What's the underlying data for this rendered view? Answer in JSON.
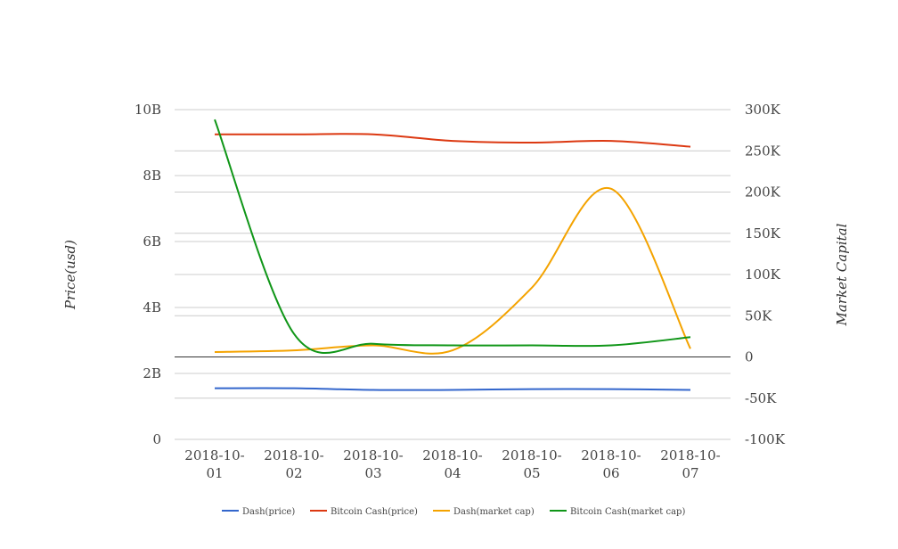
{
  "chart_data": {
    "type": "line",
    "categories": [
      "2018-10-01",
      "2018-10-02",
      "2018-10-03",
      "2018-10-04",
      "2018-10-05",
      "2018-10-06",
      "2018-10-07"
    ],
    "category_lines": [
      [
        "2018-10-",
        "01"
      ],
      [
        "2018-10-",
        "02"
      ],
      [
        "2018-10-",
        "03"
      ],
      [
        "2018-10-",
        "04"
      ],
      [
        "2018-10-",
        "05"
      ],
      [
        "2018-10-",
        "06"
      ],
      [
        "2018-10-",
        "07"
      ]
    ],
    "y_left": {
      "label": "Price(usd)",
      "range": [
        0,
        10000000000
      ],
      "ticks": [
        0,
        2000000000,
        4000000000,
        6000000000,
        8000000000,
        10000000000
      ],
      "tick_labels": [
        "0",
        "2B",
        "4B",
        "6B",
        "8B",
        "10B"
      ]
    },
    "y_right": {
      "label": "Market Capital",
      "range": [
        -100000,
        300000
      ],
      "ticks": [
        -100000,
        -50000,
        0,
        50000,
        100000,
        150000,
        200000,
        250000,
        300000
      ],
      "tick_labels": [
        "-100K",
        "-50K",
        "0",
        "50K",
        "100K",
        "150K",
        "200K",
        "250K",
        "300K"
      ]
    },
    "grid": true,
    "legend_position": "bottom",
    "series": [
      {
        "name": "Dash(price)",
        "axis": "right",
        "color": "#3366cc",
        "values": [
          -38000,
          -38000,
          -40000,
          -40000,
          -39000,
          -39000,
          -40000
        ]
      },
      {
        "name": "Bitcoin Cash(price)",
        "axis": "right",
        "color": "#dc3912",
        "values": [
          270000,
          270000,
          270000,
          262000,
          260000,
          262000,
          255000
        ]
      },
      {
        "name": "Dash(market cap)",
        "axis": "left",
        "color": "#f4a300",
        "values": [
          2650000000,
          2700000000,
          2850000000,
          2700000000,
          4600000000,
          7600000000,
          2750000000
        ]
      },
      {
        "name": "Bitcoin Cash(market cap)",
        "axis": "left",
        "color": "#109618",
        "values": [
          9700000000,
          3200000000,
          2900000000,
          2850000000,
          2850000000,
          2850000000,
          3100000000
        ]
      }
    ]
  }
}
